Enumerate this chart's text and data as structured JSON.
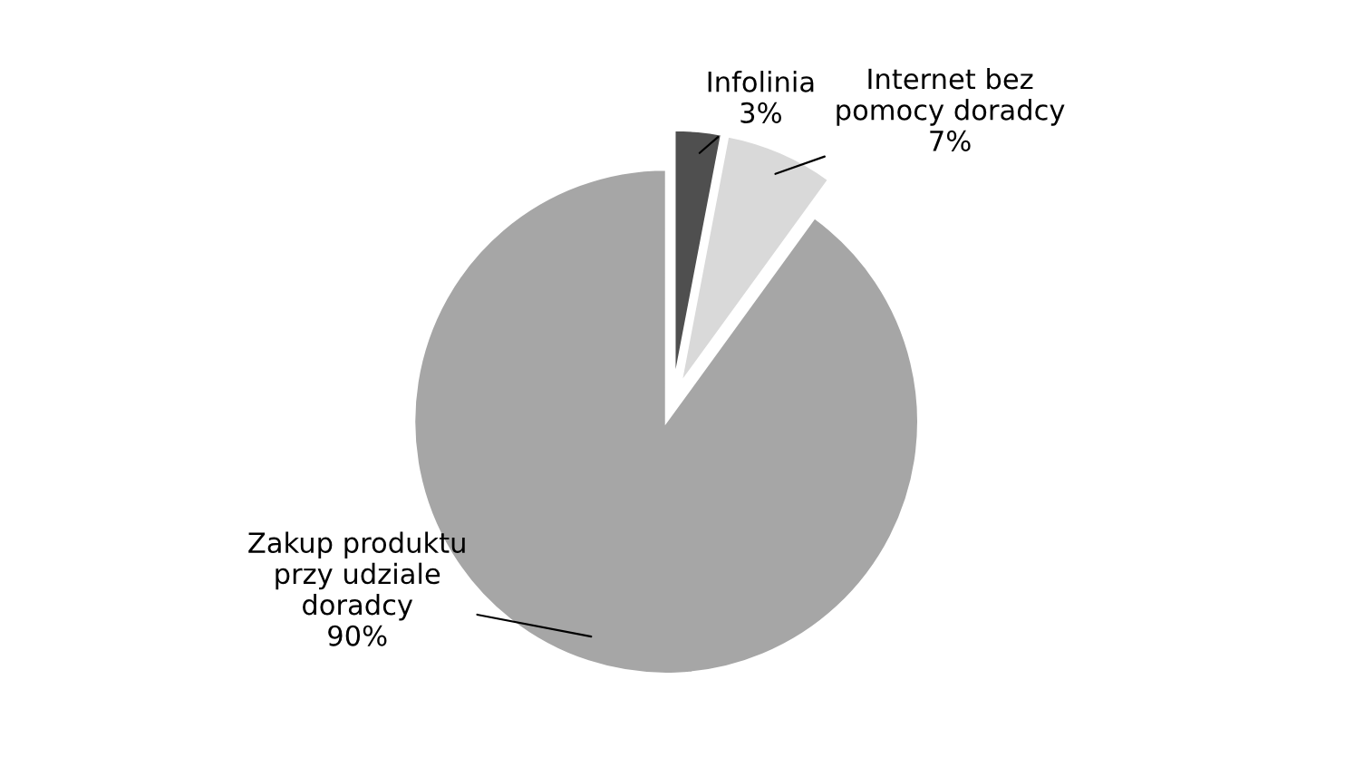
{
  "chart_data": {
    "type": "pie",
    "categories": [
      "Infolinia",
      "Internet bez pomocy doradcy",
      "Zakup produktu przy udziale doradcy"
    ],
    "values": [
      3,
      7,
      90
    ],
    "colors": [
      "#4f4f4f",
      "#d9d9d9",
      "#a6a6a6"
    ],
    "value_labels": [
      "3%",
      "7%",
      "90%"
    ],
    "legend": false
  }
}
